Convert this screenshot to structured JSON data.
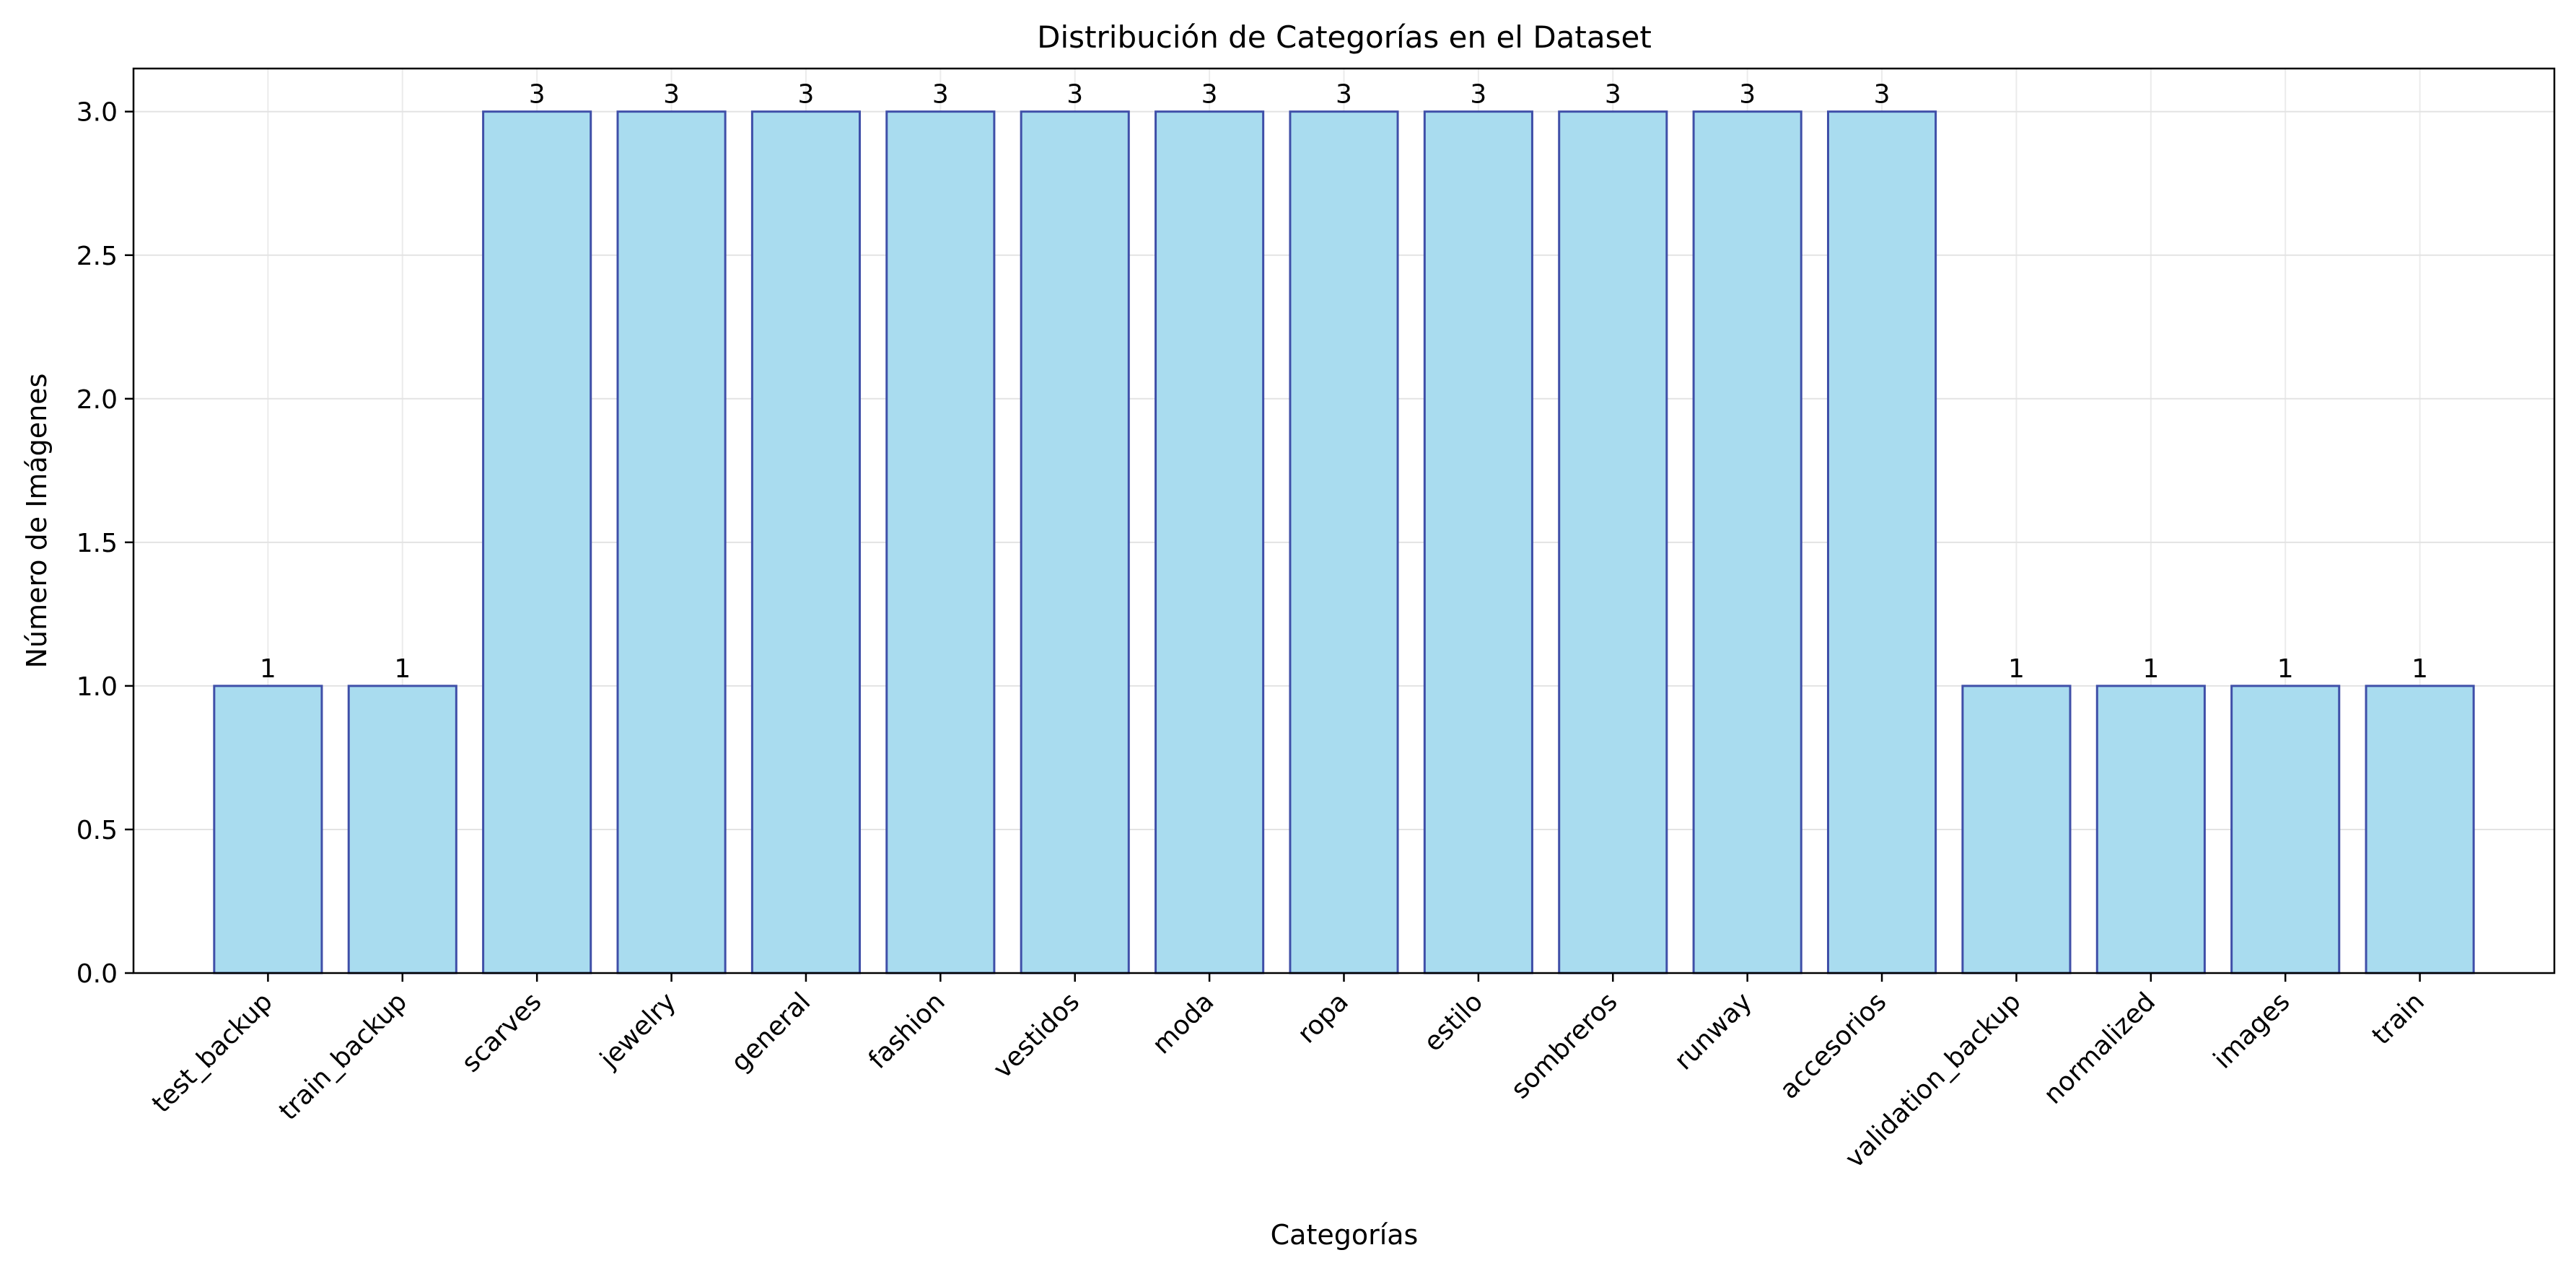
{
  "chart_data": {
    "type": "bar",
    "title": "Distribución de Categorías en el Dataset",
    "xlabel": "Categorías",
    "ylabel": "Número de Imágenes",
    "categories": [
      "test_backup",
      "train_backup",
      "scarves",
      "jewelry",
      "general",
      "fashion",
      "vestidos",
      "moda",
      "ropa",
      "estilo",
      "sombreros",
      "runway",
      "accesorios",
      "validation_backup",
      "normalized",
      "images",
      "train"
    ],
    "values": [
      1,
      1,
      3,
      3,
      3,
      3,
      3,
      3,
      3,
      3,
      3,
      3,
      3,
      1,
      1,
      1,
      1
    ],
    "data_labels": [
      "1",
      "1",
      "3",
      "3",
      "3",
      "3",
      "3",
      "3",
      "3",
      "3",
      "3",
      "3",
      "3",
      "1",
      "1",
      "1",
      "1"
    ],
    "ylim": [
      0,
      3.15
    ],
    "yticks": [
      0.0,
      0.5,
      1.0,
      1.5,
      2.0,
      2.5,
      3.0
    ],
    "ytick_labels": [
      "0.0",
      "0.5",
      "1.0",
      "1.5",
      "2.0",
      "2.5",
      "3.0"
    ],
    "grid": true,
    "colors": {
      "bar_fill": "#a9dcef",
      "bar_edge": "#3f4fa8",
      "grid": "#e3e3e3",
      "axis": "#000000"
    }
  }
}
